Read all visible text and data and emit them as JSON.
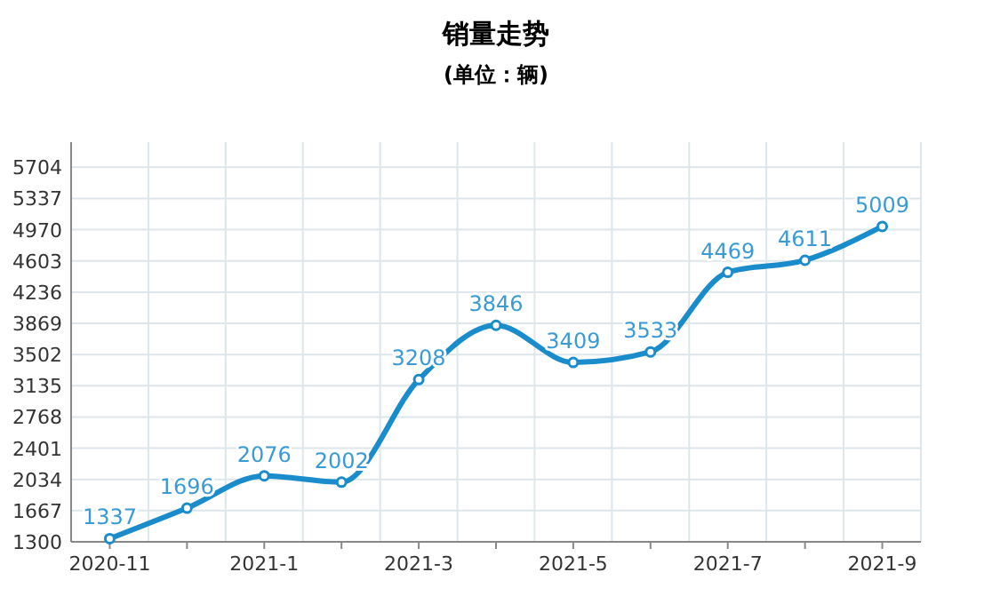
{
  "chart_data": {
    "type": "line",
    "title": "销量走势",
    "subtitle": "(单位：辆)",
    "categories": [
      "2020-11",
      null,
      "2021-1",
      null,
      "2021-3",
      null,
      "2021-5",
      null,
      "2021-7",
      null,
      "2021-9"
    ],
    "series": [
      {
        "color": "#1a8ccc",
        "values": [
          1337,
          1696,
          2076,
          2002,
          3208,
          3846,
          3409,
          3533,
          4469,
          4611,
          5009
        ]
      }
    ],
    "ylim": [
      1300,
      6000
    ],
    "yticks": [
      1300,
      1667,
      2034,
      2401,
      2768,
      3135,
      3502,
      3869,
      4236,
      4603,
      4970,
      5337,
      5704
    ],
    "grid": true,
    "data_labels": true,
    "marker": "circle",
    "line_style": "solid"
  }
}
